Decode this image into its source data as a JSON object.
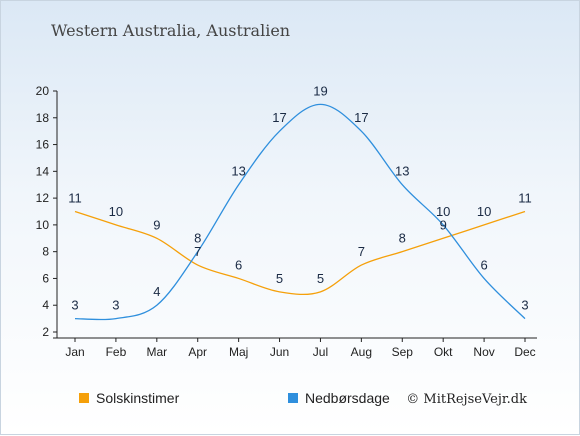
{
  "chart_data": {
    "type": "line",
    "title": "Western Australia, Australien",
    "categories": [
      "Jan",
      "Feb",
      "Mar",
      "Apr",
      "Maj",
      "Jun",
      "Jul",
      "Aug",
      "Sep",
      "Okt",
      "Nov",
      "Dec"
    ],
    "ylim": [
      2,
      20
    ],
    "yticks": [
      2,
      4,
      6,
      8,
      10,
      12,
      14,
      16,
      18,
      20
    ],
    "grid": false,
    "legend_position": "bottom-left",
    "series": [
      {
        "name": "Solskinstimer",
        "color": "#f5a00a",
        "values": [
          11,
          10,
          9,
          7,
          6,
          5,
          5,
          7,
          8,
          9,
          10,
          11
        ]
      },
      {
        "name": "Nedbørsdage",
        "color": "#2f8fdd",
        "values": [
          3,
          3,
          4,
          8,
          13,
          17,
          19,
          17,
          13,
          10,
          6,
          3
        ]
      }
    ]
  },
  "footer": {
    "copyright": "© MitRejseVejr.dk"
  }
}
